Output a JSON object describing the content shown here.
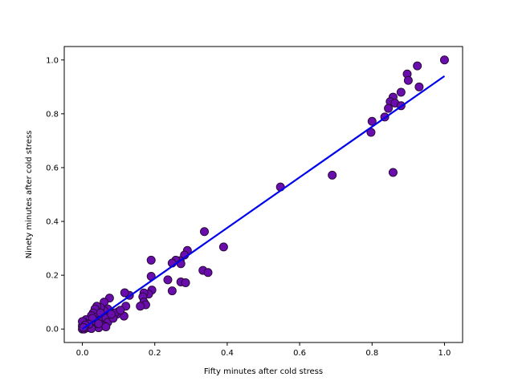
{
  "chart_data": {
    "type": "scatter",
    "xlabel": "Fifty minutes after cold stress",
    "ylabel": "Ninety minutes after cold stress",
    "xlim": [
      -0.05,
      1.05
    ],
    "ylim": [
      -0.05,
      1.05
    ],
    "xticks": [
      "0.0",
      "0.2",
      "0.4",
      "0.6",
      "0.8",
      "1.0"
    ],
    "yticks": [
      "0.0",
      "0.2",
      "0.4",
      "0.6",
      "0.8",
      "1.0"
    ],
    "grid": false,
    "point_color": "#6a0dad",
    "point_edge_color": "#2a0a3a",
    "fit_line_color": "#0000ee",
    "fit_line": {
      "x": [
        0.0,
        1.0
      ],
      "y": [
        0.0,
        0.94
      ]
    },
    "points": [
      [
        1.0,
        1.0
      ],
      [
        0.925,
        0.978
      ],
      [
        0.897,
        0.948
      ],
      [
        0.9,
        0.924
      ],
      [
        0.93,
        0.9
      ],
      [
        0.858,
        0.862
      ],
      [
        0.85,
        0.845
      ],
      [
        0.845,
        0.82
      ],
      [
        0.863,
        0.84
      ],
      [
        0.88,
        0.88
      ],
      [
        0.88,
        0.83
      ],
      [
        0.835,
        0.788
      ],
      [
        0.8,
        0.772
      ],
      [
        0.797,
        0.731
      ],
      [
        0.858,
        0.582
      ],
      [
        0.69,
        0.572
      ],
      [
        0.547,
        0.528
      ],
      [
        0.39,
        0.305
      ],
      [
        0.337,
        0.362
      ],
      [
        0.333,
        0.218
      ],
      [
        0.347,
        0.21
      ],
      [
        0.29,
        0.292
      ],
      [
        0.282,
        0.275
      ],
      [
        0.27,
        0.254
      ],
      [
        0.258,
        0.256
      ],
      [
        0.248,
        0.245
      ],
      [
        0.272,
        0.243
      ],
      [
        0.236,
        0.183
      ],
      [
        0.248,
        0.142
      ],
      [
        0.272,
        0.175
      ],
      [
        0.285,
        0.172
      ],
      [
        0.19,
        0.256
      ],
      [
        0.19,
        0.196
      ],
      [
        0.192,
        0.145
      ],
      [
        0.183,
        0.13
      ],
      [
        0.17,
        0.134
      ],
      [
        0.167,
        0.12
      ],
      [
        0.17,
        0.1
      ],
      [
        0.175,
        0.09
      ],
      [
        0.16,
        0.085
      ],
      [
        0.13,
        0.125
      ],
      [
        0.117,
        0.135
      ],
      [
        0.12,
        0.085
      ],
      [
        0.115,
        0.048
      ],
      [
        0.1,
        0.065
      ],
      [
        0.095,
        0.055
      ],
      [
        0.085,
        0.06
      ],
      [
        0.075,
        0.115
      ],
      [
        0.06,
        0.1
      ],
      [
        0.07,
        0.075
      ],
      [
        0.06,
        0.068
      ],
      [
        0.05,
        0.08
      ],
      [
        0.04,
        0.085
      ],
      [
        0.035,
        0.075
      ],
      [
        0.03,
        0.06
      ],
      [
        0.025,
        0.05
      ],
      [
        0.04,
        0.045
      ],
      [
        0.05,
        0.035
      ],
      [
        0.055,
        0.03
      ],
      [
        0.065,
        0.04
      ],
      [
        0.07,
        0.025
      ],
      [
        0.06,
        0.012
      ],
      [
        0.045,
        0.005
      ],
      [
        0.03,
        0.015
      ],
      [
        0.02,
        0.03
      ],
      [
        0.015,
        0.02
      ],
      [
        0.01,
        0.035
      ],
      [
        0.01,
        0.01
      ],
      [
        0.005,
        0.025
      ],
      [
        0.0,
        0.012
      ],
      [
        0.0,
        0.0
      ],
      [
        0.005,
        0.0
      ],
      [
        0.012,
        0.005
      ],
      [
        0.02,
        0.008
      ],
      [
        0.025,
        0.002
      ],
      [
        0.0,
        0.028
      ],
      [
        0.035,
        0.03
      ],
      [
        0.045,
        0.02
      ],
      [
        0.065,
        0.008
      ],
      [
        0.09,
        0.06
      ],
      [
        0.105,
        0.07
      ],
      [
        0.085,
        0.04
      ],
      [
        0.08,
        0.055
      ],
      [
        0.05,
        0.06
      ],
      [
        0.028,
        0.04
      ],
      [
        0.018,
        0.018
      ],
      [
        0.008,
        0.015
      ],
      [
        0.003,
        0.006
      ]
    ]
  }
}
